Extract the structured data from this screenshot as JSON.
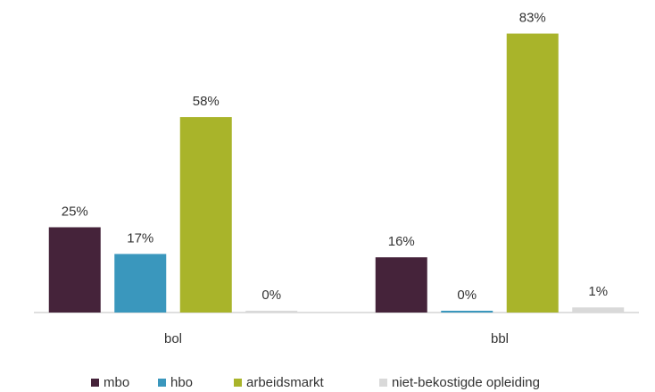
{
  "chart_data": {
    "type": "bar",
    "categories": [
      "bol",
      "bbl"
    ],
    "series": [
      {
        "name": "mbo",
        "color": "#45233a",
        "values": [
          25,
          16
        ],
        "value_labels": [
          "25%",
          "16%"
        ]
      },
      {
        "name": "hbo",
        "color": "#3a97bd",
        "values": [
          17,
          0
        ],
        "value_labels": [
          "17%",
          "0%"
        ]
      },
      {
        "name": "arbeidsmarkt",
        "color": "#a9b42a",
        "values": [
          58,
          83
        ],
        "value_labels": [
          "58%",
          "83%"
        ]
      },
      {
        "name": "niet-bekostigde opleiding",
        "color": "#d9d9d9",
        "values": [
          0,
          1
        ],
        "value_labels": [
          "0%",
          "1%"
        ]
      }
    ],
    "legend": "bottom"
  }
}
